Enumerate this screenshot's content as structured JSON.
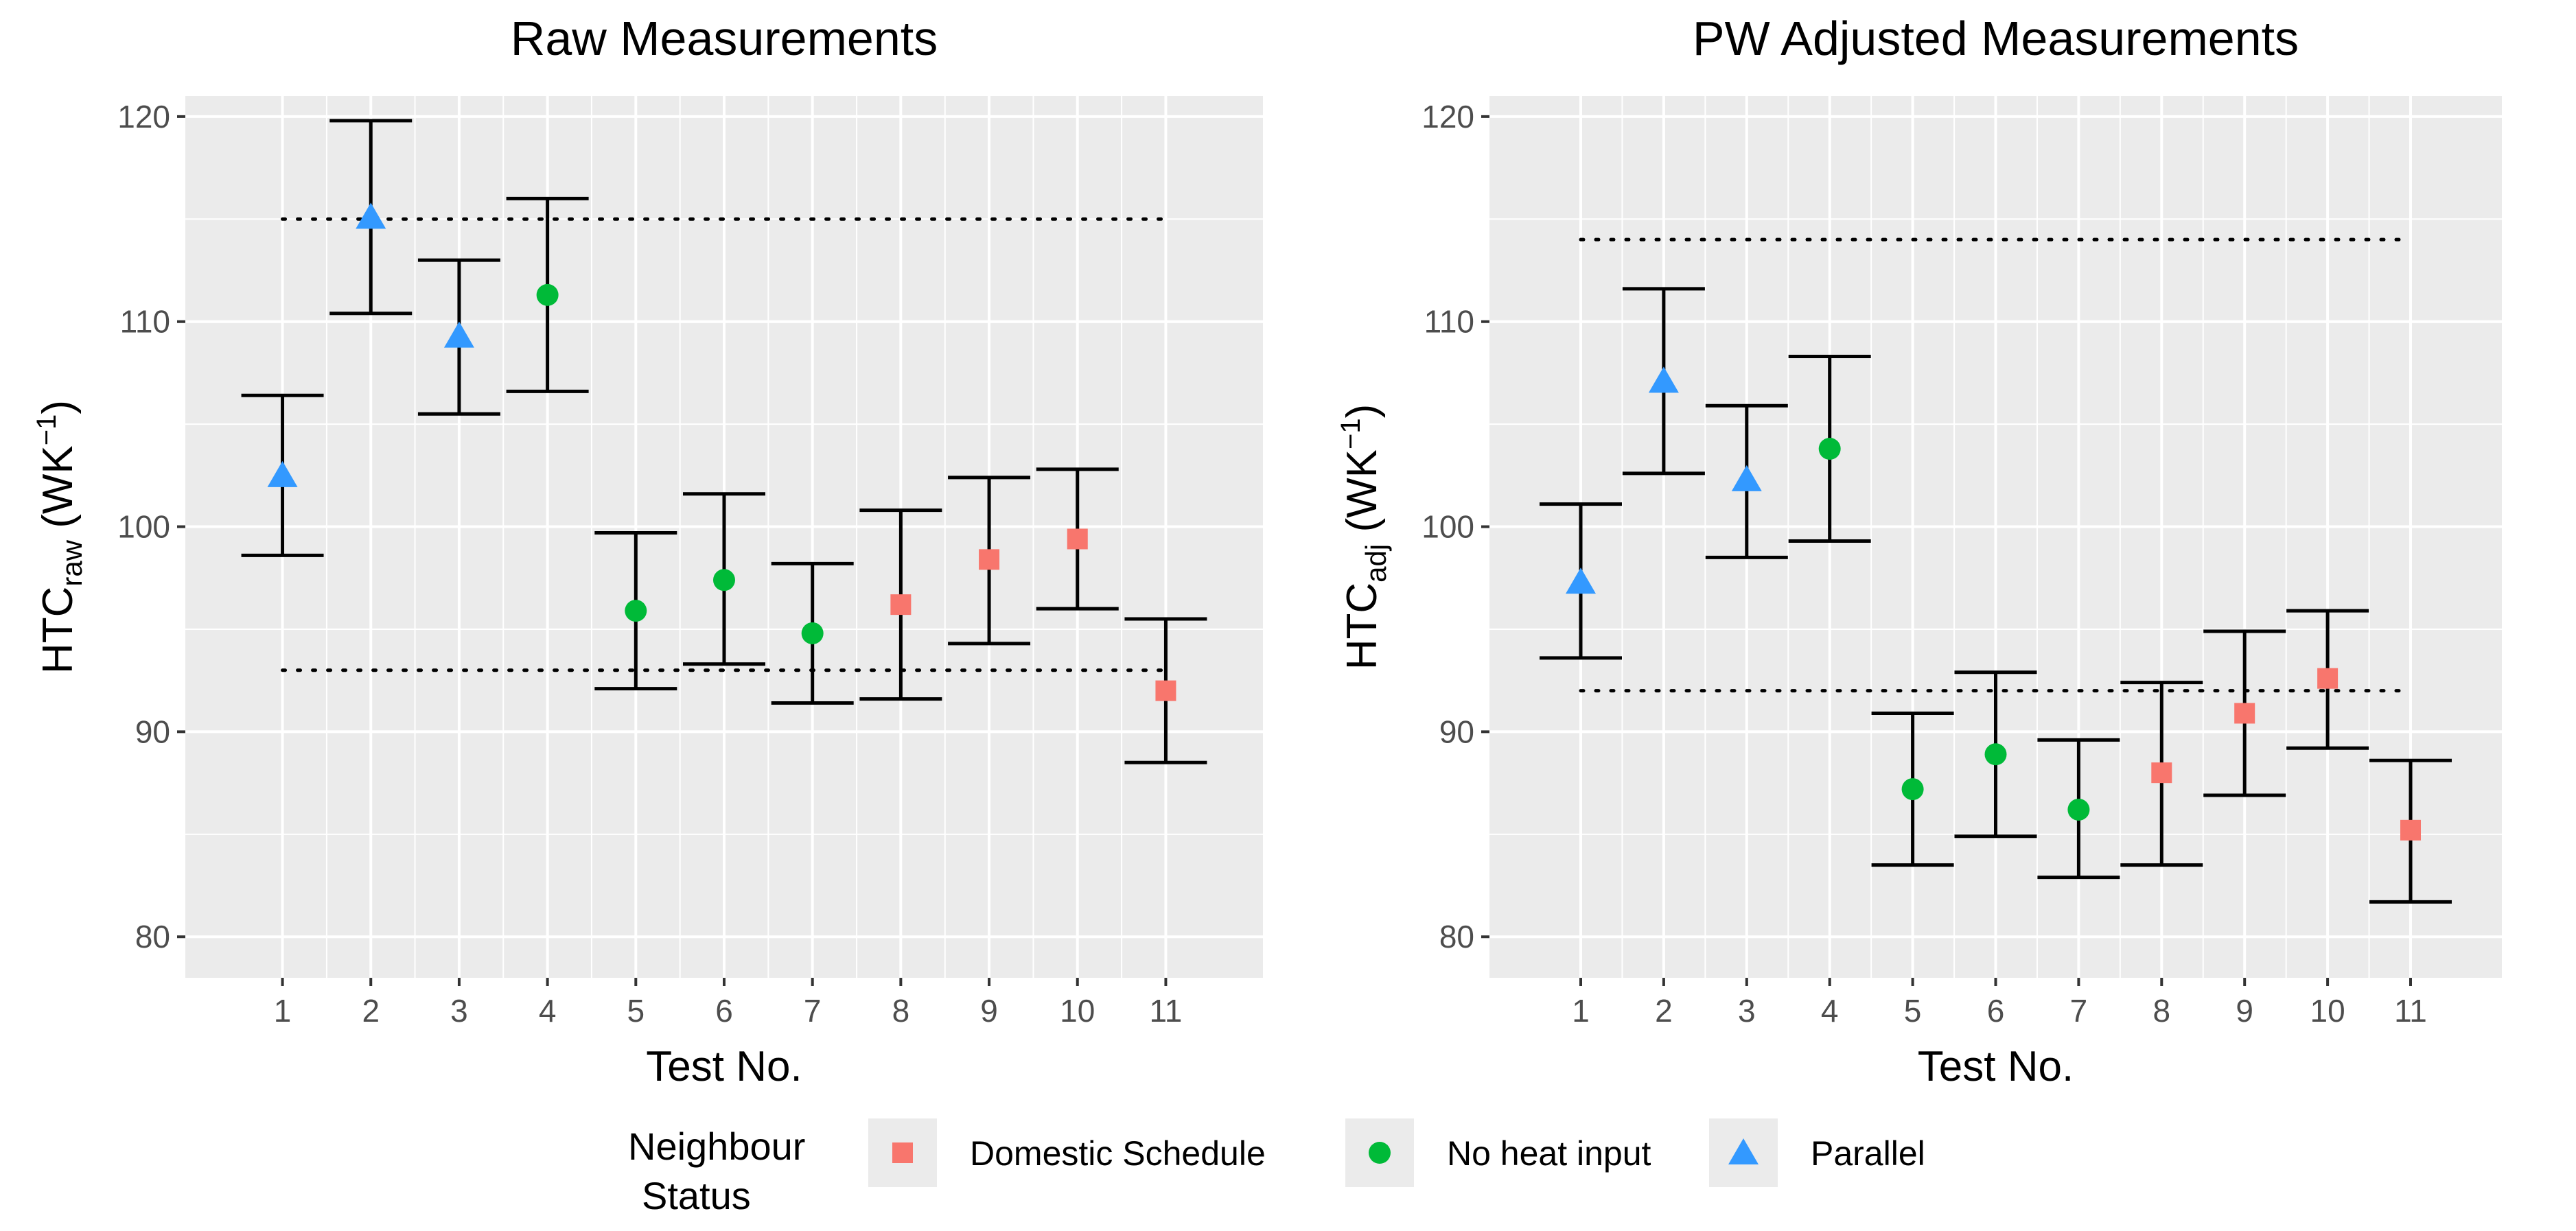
{
  "colors": {
    "Domestic Schedule": "#F8766D",
    "No heat input": "#00BA38",
    "Parallel": "#3399FF",
    "panel_bg": "#EBEBEB",
    "grid": "#FFFFFF"
  },
  "legend": {
    "title_line1": "Neighbour",
    "title_line2": "Status",
    "items": [
      {
        "label": "Domestic Schedule",
        "shape": "square"
      },
      {
        "label": "No heat input",
        "shape": "circle"
      },
      {
        "label": "Parallel",
        "shape": "triangle"
      }
    ]
  },
  "chart_data": [
    {
      "type": "scatter",
      "title": "Raw Measurements",
      "xlabel": "Test No.",
      "ylabel_main": "HTC",
      "ylabel_sub": "raw",
      "ylabel_unit_open": " (WK",
      "ylabel_unit_sup": "−1",
      "ylabel_unit_close": ")",
      "ylim": [
        78,
        121
      ],
      "yticks": [
        80,
        90,
        100,
        110,
        120
      ],
      "x": [
        1,
        2,
        3,
        4,
        5,
        6,
        7,
        8,
        9,
        10,
        11
      ],
      "xlim": [
        -0.1,
        12.1
      ],
      "y": [
        102.5,
        115.1,
        109.3,
        111.3,
        95.9,
        97.4,
        94.8,
        96.2,
        98.4,
        99.4,
        92.0
      ],
      "ymin": [
        98.6,
        110.4,
        105.5,
        106.6,
        92.1,
        93.3,
        91.4,
        91.6,
        94.3,
        96.0,
        88.5
      ],
      "ymax": [
        106.4,
        119.8,
        113.0,
        116.0,
        99.7,
        101.6,
        98.2,
        100.8,
        102.4,
        102.8,
        95.5
      ],
      "status": [
        "Parallel",
        "Parallel",
        "Parallel",
        "No heat input",
        "No heat input",
        "No heat input",
        "No heat input",
        "Domestic Schedule",
        "Domestic Schedule",
        "Domestic Schedule",
        "Domestic Schedule"
      ],
      "ref_lines": [
        {
          "y": 115.0,
          "x_from": 1,
          "x_to": 11
        },
        {
          "y": 93.0,
          "x_from": 1,
          "x_to": 11
        }
      ]
    },
    {
      "type": "scatter",
      "title": "PW Adjusted Measurements",
      "xlabel": "Test No.",
      "ylabel_main": "HTC",
      "ylabel_sub": "adj",
      "ylabel_unit_open": " (WK",
      "ylabel_unit_sup": "−1",
      "ylabel_unit_close": ")",
      "ylim": [
        78,
        121
      ],
      "yticks": [
        80,
        90,
        100,
        110,
        120
      ],
      "x": [
        1,
        2,
        3,
        4,
        5,
        6,
        7,
        8,
        9,
        10,
        11
      ],
      "xlim": [
        -0.1,
        12.1
      ],
      "y": [
        97.3,
        107.1,
        102.3,
        103.8,
        87.2,
        88.9,
        86.2,
        88.0,
        90.9,
        92.6,
        85.2
      ],
      "ymin": [
        93.6,
        102.6,
        98.5,
        99.3,
        83.5,
        84.9,
        82.9,
        83.5,
        86.9,
        89.2,
        81.7
      ],
      "ymax": [
        101.1,
        111.6,
        105.9,
        108.3,
        90.9,
        92.9,
        89.6,
        92.4,
        94.9,
        95.9,
        88.6
      ],
      "status": [
        "Parallel",
        "Parallel",
        "Parallel",
        "No heat input",
        "No heat input",
        "No heat input",
        "No heat input",
        "Domestic Schedule",
        "Domestic Schedule",
        "Domestic Schedule",
        "Domestic Schedule"
      ],
      "ref_lines": [
        {
          "y": 114.0,
          "x_from": 1,
          "x_to": 11
        },
        {
          "y": 92.0,
          "x_from": 1,
          "x_to": 11
        }
      ]
    }
  ]
}
